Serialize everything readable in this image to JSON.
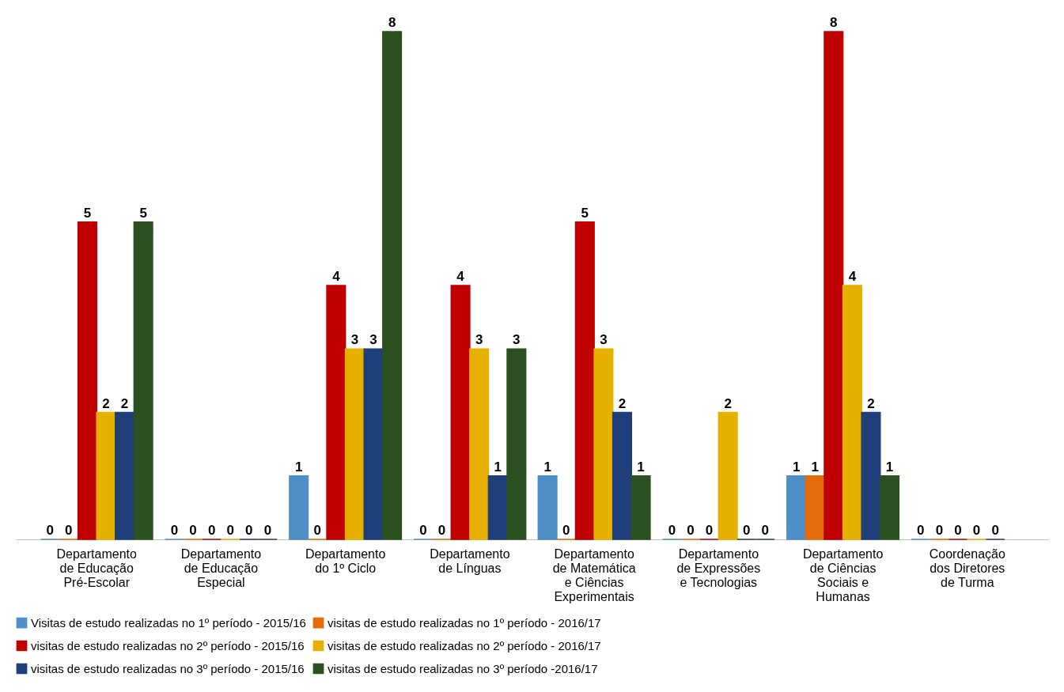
{
  "chart_data": {
    "type": "bar",
    "categories": [
      "Departamento de Educação Pré-Escolar",
      "Departamento de Educação Especial",
      "Departamento do 1º Ciclo",
      "Departamento de Línguas",
      "Departamento de Matemática e Ciências Experimentais",
      "Departamento de Expressões e Tecnologias",
      "Departamento de Ciências Sociais e Humanas",
      "Coordenação dos Diretores de Turma"
    ],
    "series": [
      {
        "name": "Visitas de estudo realizadas no 1º período - 2015/16",
        "color": "#4f8fc8",
        "values": [
          0,
          0,
          1,
          0,
          1,
          0,
          1,
          0
        ]
      },
      {
        "name": "visitas de estudo realizadas no 1º período - 2016/17",
        "color": "#e46c0a",
        "values": [
          0,
          0,
          0,
          0,
          0,
          0,
          1,
          0
        ]
      },
      {
        "name": "visitas de estudo realizadas no 2º período - 2015/16",
        "color": "#c00000",
        "values": [
          5,
          0,
          4,
          4,
          5,
          0,
          8,
          0
        ]
      },
      {
        "name": "visitas de estudo realizadas no 2º período - 2016/17",
        "color": "#e6b000",
        "values": [
          2,
          0,
          3,
          3,
          3,
          2,
          4,
          0
        ]
      },
      {
        "name": "visitas de estudo realizadas no 3º período - 2015/16",
        "color": "#1f3f7a",
        "values": [
          2,
          0,
          3,
          1,
          2,
          0,
          2,
          0
        ]
      },
      {
        "name": "visitas de estudo realizadas no 3º período -2016/17",
        "color": "#2d5020",
        "values": [
          5,
          0,
          8,
          3,
          1,
          0,
          1,
          null
        ]
      }
    ],
    "data_labels": true,
    "legend": "bottom",
    "grid": false
  }
}
